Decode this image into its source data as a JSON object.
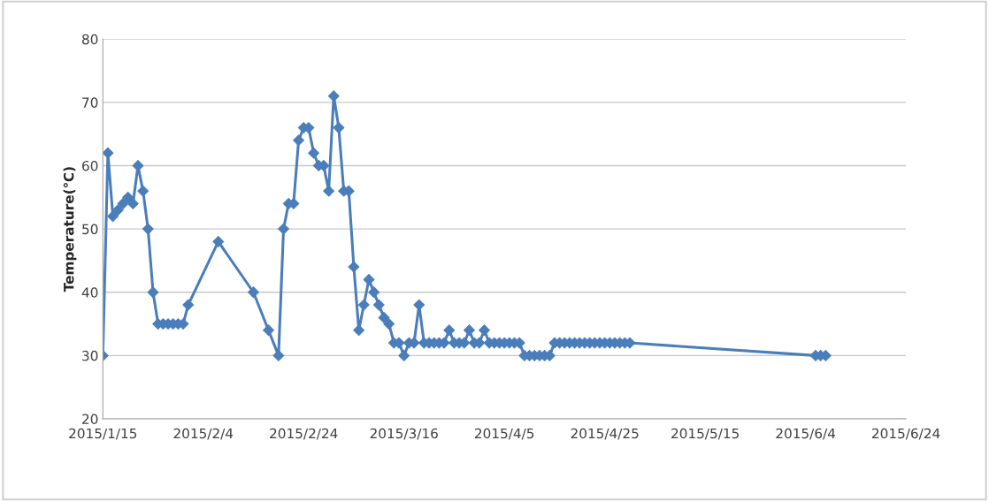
{
  "chart_data": {
    "type": "line",
    "ylabel": "Temperature(℃)",
    "x": [
      "2015-01-15",
      "2015-01-16",
      "2015-01-17",
      "2015-01-18",
      "2015-01-19",
      "2015-01-20",
      "2015-01-21",
      "2015-01-22",
      "2015-01-23",
      "2015-01-24",
      "2015-01-25",
      "2015-01-26",
      "2015-01-27",
      "2015-01-28",
      "2015-01-29",
      "2015-01-30",
      "2015-01-31",
      "2015-02-01",
      "2015-02-07",
      "2015-02-14",
      "2015-02-17",
      "2015-02-19",
      "2015-02-20",
      "2015-02-21",
      "2015-02-22",
      "2015-02-23",
      "2015-02-24",
      "2015-02-25",
      "2015-02-26",
      "2015-02-27",
      "2015-02-28",
      "2015-03-01",
      "2015-03-02",
      "2015-03-03",
      "2015-03-04",
      "2015-03-05",
      "2015-03-06",
      "2015-03-07",
      "2015-03-08",
      "2015-03-09",
      "2015-03-10",
      "2015-03-11",
      "2015-03-12",
      "2015-03-13",
      "2015-03-14",
      "2015-03-15",
      "2015-03-16",
      "2015-03-17",
      "2015-03-18",
      "2015-03-19",
      "2015-03-20",
      "2015-03-21",
      "2015-03-22",
      "2015-03-23",
      "2015-03-24",
      "2015-03-25",
      "2015-03-26",
      "2015-03-27",
      "2015-03-28",
      "2015-03-29",
      "2015-03-30",
      "2015-03-31",
      "2015-04-01",
      "2015-04-02",
      "2015-04-03",
      "2015-04-04",
      "2015-04-05",
      "2015-04-06",
      "2015-04-07",
      "2015-04-08",
      "2015-04-09",
      "2015-04-10",
      "2015-04-11",
      "2015-04-12",
      "2015-04-13",
      "2015-04-14",
      "2015-04-15",
      "2015-04-16",
      "2015-04-17",
      "2015-04-18",
      "2015-04-19",
      "2015-04-20",
      "2015-04-21",
      "2015-04-22",
      "2015-04-23",
      "2015-04-24",
      "2015-04-25",
      "2015-04-26",
      "2015-04-27",
      "2015-04-28",
      "2015-04-29",
      "2015-04-30",
      "2015-06-06",
      "2015-06-07",
      "2015-06-08"
    ],
    "series": [
      {
        "color": "#4a7ebb",
        "values": [
          30,
          62,
          52,
          53,
          54,
          55,
          54,
          60,
          56,
          50,
          40,
          35,
          35,
          35,
          35,
          35,
          35,
          38,
          48,
          40,
          34,
          30,
          50,
          54,
          54,
          64,
          66,
          66,
          62,
          60,
          60,
          56,
          71,
          66,
          56,
          56,
          44,
          34,
          38,
          42,
          40,
          38,
          36,
          35,
          32,
          32,
          30,
          32,
          32,
          38,
          32,
          32,
          32,
          32,
          32,
          34,
          32,
          32,
          32,
          34,
          32,
          32,
          34,
          32,
          32,
          32,
          32,
          32,
          32,
          32,
          30,
          30,
          30,
          30,
          30,
          30,
          32,
          32,
          32,
          32,
          32,
          32,
          32,
          32,
          32,
          32,
          32,
          32,
          32,
          32,
          32,
          32,
          30,
          30,
          30
        ]
      }
    ],
    "xlim": [
      "2015-01-15",
      "2015-06-24"
    ],
    "xticks": [
      {
        "value": "2015-01-15",
        "label": "2015/1/15"
      },
      {
        "value": "2015-02-04",
        "label": "2015/2/4"
      },
      {
        "value": "2015-02-24",
        "label": "2015/2/24"
      },
      {
        "value": "2015-03-16",
        "label": "2015/3/16"
      },
      {
        "value": "2015-04-05",
        "label": "2015/4/5"
      },
      {
        "value": "2015-04-25",
        "label": "2015/4/25"
      },
      {
        "value": "2015-05-15",
        "label": "2015/5/15"
      },
      {
        "value": "2015-06-04",
        "label": "2015/6/4"
      },
      {
        "value": "2015-06-24",
        "label": "2015/6/24"
      }
    ],
    "ylim": [
      20,
      80
    ],
    "yticks": [
      20,
      30,
      40,
      50,
      60,
      70,
      80
    ],
    "grid": "y",
    "marker": "diamond",
    "line_style": "solid"
  }
}
